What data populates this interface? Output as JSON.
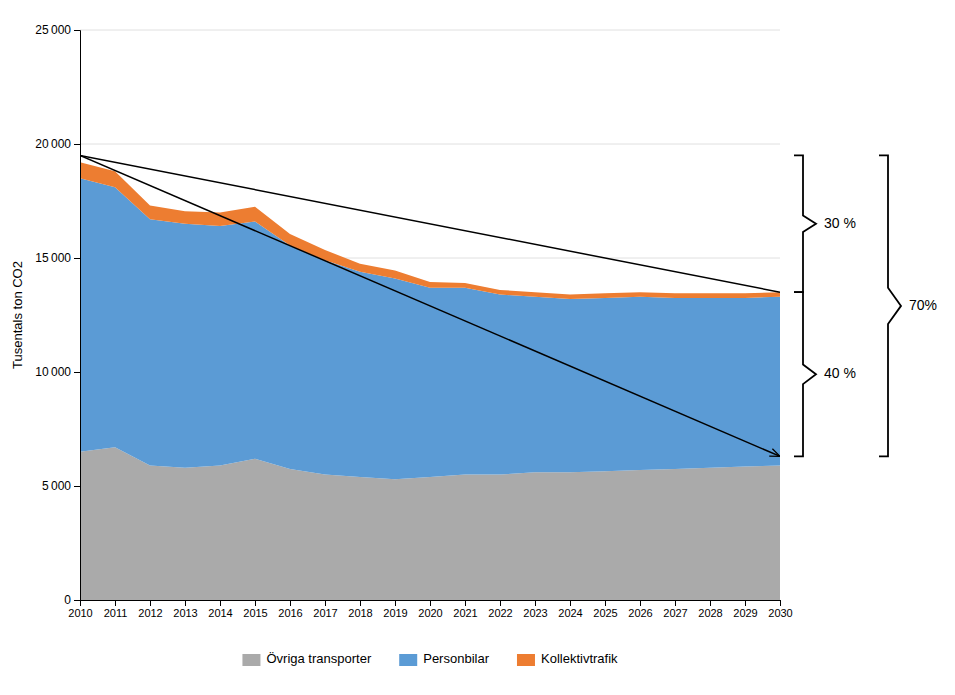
{
  "chart_data": {
    "type": "area",
    "stacked": true,
    "ylabel": "Tusentals ton CO2",
    "x": [
      2010,
      2011,
      2012,
      2013,
      2014,
      2015,
      2016,
      2017,
      2018,
      2019,
      2020,
      2021,
      2022,
      2023,
      2024,
      2025,
      2026,
      2027,
      2028,
      2029,
      2030
    ],
    "series": [
      {
        "name": "Övriga transporter",
        "color": "#aaaaaa",
        "values": [
          6500,
          6700,
          5900,
          5800,
          5900,
          6200,
          5750,
          5500,
          5400,
          5300,
          5400,
          5500,
          5500,
          5600,
          5600,
          5650,
          5700,
          5750,
          5800,
          5850,
          5900
        ]
      },
      {
        "name": "Personbilar",
        "color": "#5b9bd5",
        "values": [
          12000,
          11400,
          10800,
          10700,
          10500,
          10400,
          9800,
          9400,
          9000,
          8800,
          8300,
          8200,
          7900,
          7700,
          7600,
          7600,
          7600,
          7500,
          7450,
          7400,
          7400
        ]
      },
      {
        "name": "Kollektivtrafik",
        "color": "#ed7d31",
        "values": [
          700,
          700,
          600,
          550,
          600,
          650,
          500,
          450,
          350,
          350,
          250,
          200,
          200,
          200,
          200,
          200,
          200,
          200,
          200,
          200,
          200
        ]
      }
    ],
    "bau_line": {
      "x": [
        2010,
        2030
      ],
      "values": [
        19500,
        13500
      ]
    },
    "target_line": {
      "x": [
        2010,
        2030
      ],
      "values": [
        19500,
        6300
      ]
    },
    "annotations": [
      {
        "text": "30 %",
        "y": [
          19500,
          13500
        ]
      },
      {
        "text": "40 %",
        "y": [
          13500,
          6300
        ]
      },
      {
        "text": "70%",
        "y": [
          19500,
          6300
        ]
      }
    ],
    "xlim": [
      2010,
      2030
    ],
    "xticks": [
      2010,
      2011,
      2012,
      2013,
      2014,
      2015,
      2016,
      2017,
      2018,
      2019,
      2020,
      2021,
      2022,
      2023,
      2024,
      2025,
      2026,
      2027,
      2028,
      2029,
      2030
    ],
    "ylim": [
      0,
      25000
    ],
    "yticks": [
      0,
      {
        "value": 5000,
        "label": "5 000"
      },
      {
        "value": 10000,
        "label": "10 000"
      },
      {
        "value": 15000,
        "label": "15 000"
      },
      {
        "value": 20000,
        "label": "20 000"
      },
      {
        "value": 25000,
        "label": "25 000"
      }
    ],
    "grid": true,
    "legend": "bottom"
  }
}
